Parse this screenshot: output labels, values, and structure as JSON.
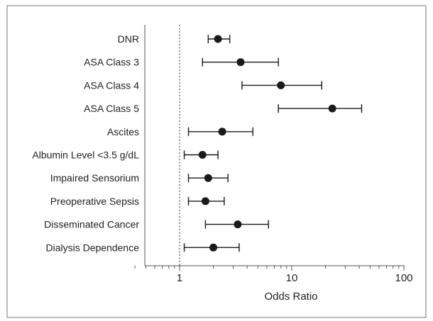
{
  "chart_data": {
    "type": "scatter",
    "subtype": "forest-plot",
    "xscale": "log",
    "xlim": [
      0.4,
      100
    ],
    "xlabel": "Odds Ratio",
    "xticks": [
      1,
      10,
      100
    ],
    "reference_line": 1,
    "grid": false,
    "rows": [
      {
        "label": "DNR",
        "or": 2.2,
        "lo": 1.8,
        "hi": 2.8
      },
      {
        "label": "ASA Class 3",
        "or": 3.5,
        "lo": 1.6,
        "hi": 7.6
      },
      {
        "label": "ASA Class 4",
        "or": 8.0,
        "lo": 3.6,
        "hi": 18.5
      },
      {
        "label": "ASA Class 5",
        "or": 23.0,
        "lo": 7.6,
        "hi": 42.0
      },
      {
        "label": "Ascites",
        "or": 2.4,
        "lo": 1.2,
        "hi": 4.5
      },
      {
        "label": "Albumin Level <3.5 g/dL",
        "or": 1.6,
        "lo": 1.1,
        "hi": 2.2
      },
      {
        "label": "Impaired Sensorium",
        "or": 1.8,
        "lo": 1.2,
        "hi": 2.7
      },
      {
        "label": "Preoperative Sepsis",
        "or": 1.7,
        "lo": 1.2,
        "hi": 2.5
      },
      {
        "label": "Disseminated Cancer",
        "or": 3.3,
        "lo": 1.7,
        "hi": 6.2
      },
      {
        "label": "Dialysis Dependence",
        "or": 2.0,
        "lo": 1.1,
        "hi": 3.4
      }
    ]
  },
  "colors": {
    "marker": "#1a1a1a",
    "line": "#1a1a1a",
    "frame": "#555555",
    "reference": "#555555"
  }
}
